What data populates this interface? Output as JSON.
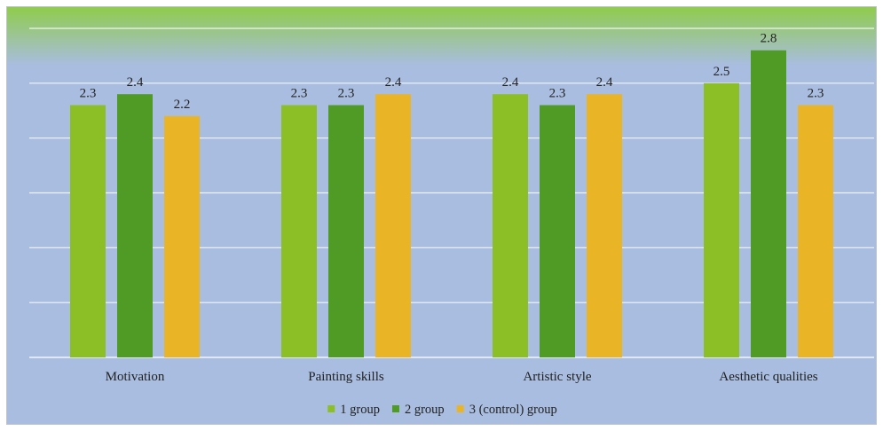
{
  "chart_data": {
    "type": "bar",
    "title": "",
    "xlabel": "",
    "ylabel": "",
    "ylim": [
      0,
      3.0
    ],
    "grid": true,
    "y_axis_labels_visible": false,
    "legend_position": "bottom",
    "categories": [
      "Motivation",
      "Painting skills",
      "Artistic style",
      "Aesthetic qualities"
    ],
    "series": [
      {
        "name": "1 group",
        "color": "#8cbe26",
        "values": [
          2.3,
          2.3,
          2.4,
          2.5
        ],
        "labels": [
          "2.3",
          "2.3",
          "2.4",
          "2.5"
        ]
      },
      {
        "name": "2 group",
        "color": "#4f9b26",
        "values": [
          2.4,
          2.3,
          2.3,
          2.8
        ],
        "labels": [
          "2.4",
          "2.3",
          "2.3",
          "2.8"
        ]
      },
      {
        "name": "3 (control) group",
        "color": "#e9b527",
        "values": [
          2.2,
          2.4,
          2.4,
          2.3
        ],
        "labels": [
          "2.2",
          "2.4",
          "2.4",
          "2.3"
        ]
      }
    ],
    "background": {
      "top_color": "#8fcc4c",
      "bottom_color": "#a9bde1"
    }
  }
}
